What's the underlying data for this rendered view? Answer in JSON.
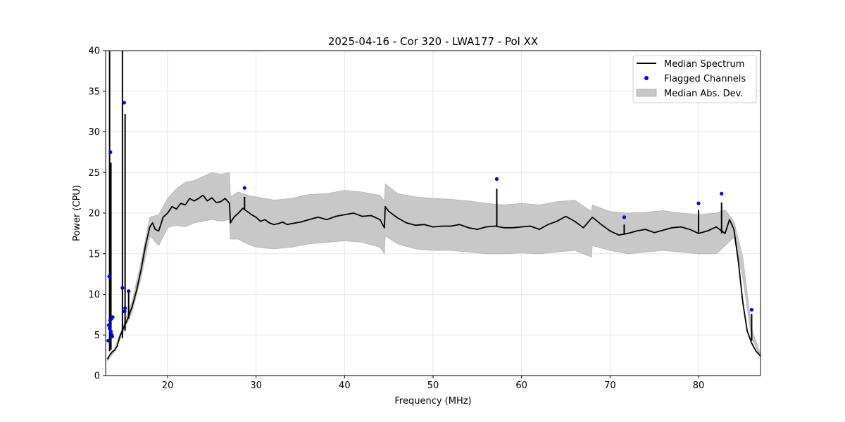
{
  "chart_data": {
    "type": "line",
    "title": "2025-04-16 - Cor 320 - LWA177 - Pol XX",
    "xlabel": "Frequency (MHz)",
    "ylabel": "Power (CPU)",
    "xlim": [
      13.0,
      87.0
    ],
    "ylim": [
      0,
      40
    ],
    "xticks": [
      20,
      30,
      40,
      50,
      60,
      70,
      80
    ],
    "yticks": [
      0,
      5,
      10,
      15,
      20,
      25,
      30,
      35,
      40
    ],
    "grid": true,
    "legend": {
      "placement": "top-right",
      "entries": [
        {
          "label": "Median Spectrum",
          "kind": "line",
          "color": "#000000"
        },
        {
          "label": "Flagged Channels",
          "kind": "scatter",
          "color": "#0000ff"
        },
        {
          "label": "Median Abs. Dev.",
          "kind": "band",
          "color": "#c8c8c8"
        }
      ]
    },
    "series": [
      {
        "name": "Median Spectrum",
        "color": "#000000",
        "x": [
          13.2,
          13.5,
          13.8,
          14.0,
          14.3,
          14.6,
          15.0,
          15.5,
          16.0,
          16.5,
          17.0,
          17.5,
          18.0,
          18.3,
          18.6,
          19.0,
          19.5,
          20.0,
          20.5,
          21.0,
          21.5,
          22.0,
          22.5,
          23.0,
          23.5,
          24.0,
          24.5,
          25.0,
          25.5,
          26.0,
          26.5,
          27.0,
          27.1,
          27.5,
          28.0,
          28.5,
          29.0,
          29.5,
          30.0,
          30.5,
          31.0,
          31.5,
          32.0,
          32.5,
          33.0,
          33.5,
          34.0,
          35.0,
          36.0,
          37.0,
          38.0,
          39.0,
          40.0,
          41.0,
          42.0,
          43.0,
          44.0,
          44.5,
          44.6,
          45.0,
          46.0,
          47.0,
          48.0,
          49.0,
          50.0,
          51.0,
          52.0,
          53.0,
          54.0,
          55.0,
          56.0,
          57.0,
          58.0,
          59.0,
          60.0,
          61.0,
          62.0,
          63.0,
          64.0,
          65.0,
          66.0,
          67.0,
          68.0,
          69.0,
          70.0,
          71.0,
          72.0,
          73.0,
          74.0,
          75.0,
          76.0,
          77.0,
          78.0,
          79.0,
          80.0,
          81.0,
          82.0,
          83.0,
          83.5,
          84.0,
          84.5,
          85.0,
          85.5,
          86.0,
          86.5,
          87.0
        ],
        "values": [
          2.0,
          2.6,
          3.0,
          3.1,
          3.6,
          4.8,
          5.8,
          7.0,
          8.5,
          10.5,
          13.0,
          16.0,
          18.3,
          18.8,
          18.0,
          17.8,
          19.5,
          20.0,
          20.8,
          20.5,
          21.2,
          21.0,
          21.8,
          21.5,
          21.8,
          22.2,
          21.5,
          21.9,
          21.3,
          21.4,
          21.8,
          21.2,
          18.8,
          19.5,
          20.0,
          20.6,
          20.2,
          19.8,
          19.5,
          19.0,
          19.2,
          18.8,
          18.6,
          18.7,
          18.9,
          18.6,
          18.7,
          18.9,
          19.2,
          19.5,
          19.2,
          19.6,
          19.8,
          20.0,
          19.6,
          19.7,
          19.2,
          18.2,
          20.8,
          20.2,
          19.4,
          18.8,
          18.5,
          18.6,
          18.3,
          18.4,
          18.4,
          18.6,
          18.2,
          18.0,
          18.3,
          18.4,
          18.2,
          18.2,
          18.3,
          18.4,
          18.0,
          18.6,
          19.0,
          19.6,
          19.0,
          18.2,
          19.5,
          18.6,
          17.8,
          17.3,
          17.5,
          17.8,
          18.0,
          17.6,
          17.9,
          18.2,
          18.3,
          18.0,
          17.5,
          17.8,
          18.3,
          17.5,
          19.2,
          18.0,
          14.0,
          9.0,
          5.5,
          4.0,
          3.0,
          2.4
        ]
      },
      {
        "name": "Median Abs. Dev.",
        "color": "#c8c8c8",
        "x": [
          13.2,
          14.0,
          15.0,
          16.0,
          17.0,
          18.0,
          19.0,
          20.0,
          21.0,
          22.0,
          23.0,
          24.0,
          25.0,
          26.0,
          27.0,
          27.1,
          28.0,
          29.0,
          30.0,
          32.0,
          34.0,
          36.0,
          38.0,
          40.0,
          42.0,
          44.0,
          44.5,
          44.6,
          46.0,
          48.0,
          50.0,
          52.0,
          54.0,
          56.0,
          58.0,
          60.0,
          62.0,
          64.0,
          66.0,
          67.9,
          68.0,
          70.0,
          72.0,
          74.0,
          76.0,
          78.0,
          80.0,
          82.0,
          83.0,
          84.0,
          85.0,
          86.0,
          87.0
        ],
        "upper": [
          2.2,
          3.3,
          6.2,
          9.2,
          14.0,
          19.5,
          19.8,
          21.8,
          23.0,
          23.8,
          24.0,
          24.5,
          25.0,
          24.8,
          25.0,
          22.0,
          22.6,
          22.2,
          22.0,
          21.6,
          21.8,
          22.3,
          22.4,
          22.8,
          22.6,
          22.2,
          21.5,
          23.6,
          22.4,
          22.0,
          21.8,
          21.7,
          21.5,
          21.2,
          21.0,
          21.2,
          21.0,
          21.4,
          21.6,
          20.2,
          21.0,
          20.2,
          20.0,
          20.1,
          20.3,
          20.0,
          19.8,
          20.0,
          20.4,
          19.0,
          14.5,
          5.8,
          2.6
        ],
        "lower": [
          1.8,
          2.9,
          5.4,
          7.8,
          12.0,
          17.2,
          16.0,
          18.2,
          18.5,
          18.3,
          18.8,
          19.0,
          19.2,
          19.0,
          19.2,
          16.8,
          16.8,
          16.2,
          15.8,
          15.6,
          15.8,
          16.2,
          16.4,
          16.6,
          16.4,
          15.8,
          15.0,
          17.2,
          16.2,
          15.6,
          15.4,
          15.4,
          15.2,
          15.0,
          15.0,
          15.1,
          15.0,
          15.2,
          15.4,
          14.6,
          16.0,
          15.4,
          15.0,
          15.2,
          15.4,
          15.2,
          15.0,
          15.0,
          16.0,
          17.0,
          12.0,
          4.6,
          2.3
        ]
      },
      {
        "name": "Flagged Channels",
        "color": "#0000ff",
        "x": [
          13.3,
          13.35,
          13.4,
          13.45,
          13.5,
          13.55,
          13.6,
          13.65,
          13.7,
          13.75,
          13.8,
          14.9,
          15.1,
          15.2,
          15.15,
          15.6,
          28.7,
          57.2,
          71.6,
          80.0,
          82.6,
          86.0
        ],
        "values": [
          4.3,
          6.2,
          12.2,
          5.8,
          6.8,
          27.5,
          5.4,
          7.0,
          5.0,
          4.8,
          7.2,
          10.8,
          33.6,
          8.3,
          7.9,
          10.4,
          23.1,
          24.2,
          19.5,
          21.2,
          22.4,
          8.1
        ]
      },
      {
        "name": "Spikes",
        "color": "#000000",
        "x": [
          13.45,
          13.6,
          14.9,
          15.2,
          15.6,
          28.7,
          57.2,
          71.6,
          80.0,
          82.6,
          86.0
        ],
        "base": [
          3.0,
          3.2,
          4.6,
          5.5,
          7.0,
          20.5,
          18.4,
          17.4,
          17.6,
          17.5,
          4.3
        ],
        "peak": [
          40.0,
          26.2,
          40.0,
          32.2,
          10.5,
          22.0,
          23.0,
          18.6,
          20.4,
          21.3,
          7.6
        ]
      }
    ]
  }
}
